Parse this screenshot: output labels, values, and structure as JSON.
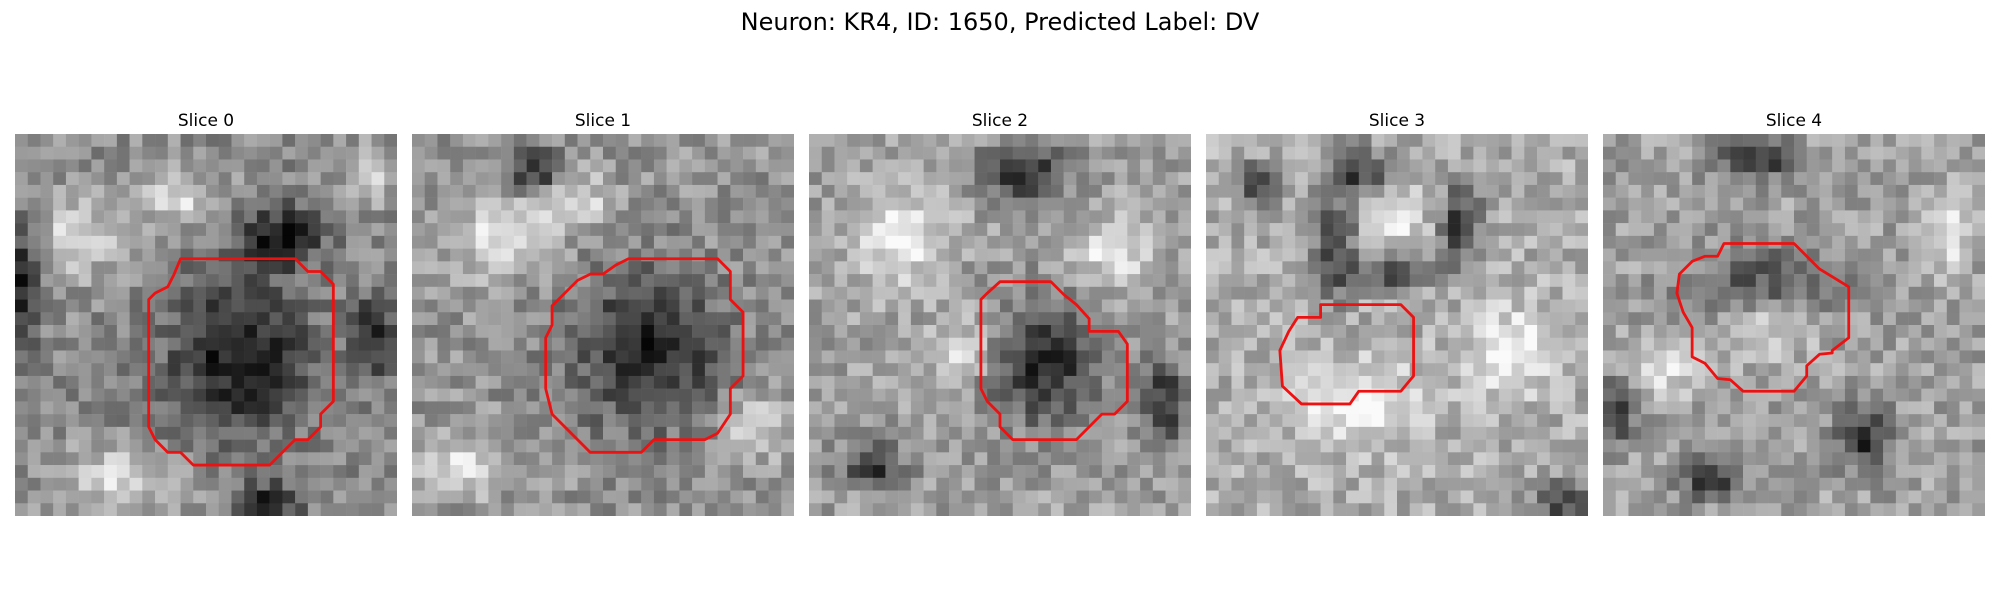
{
  "title": "Neuron: KR4, ID: 1650, Predicted Label: DV",
  "colors": {
    "background": "#ffffff",
    "contour": "#ee1111",
    "colormap": "grayscale"
  },
  "panels": [
    {
      "label": "Slice 0"
    },
    {
      "label": "Slice 1"
    },
    {
      "label": "Slice 2"
    },
    {
      "label": "Slice 3"
    },
    {
      "label": "Slice 4"
    }
  ]
}
